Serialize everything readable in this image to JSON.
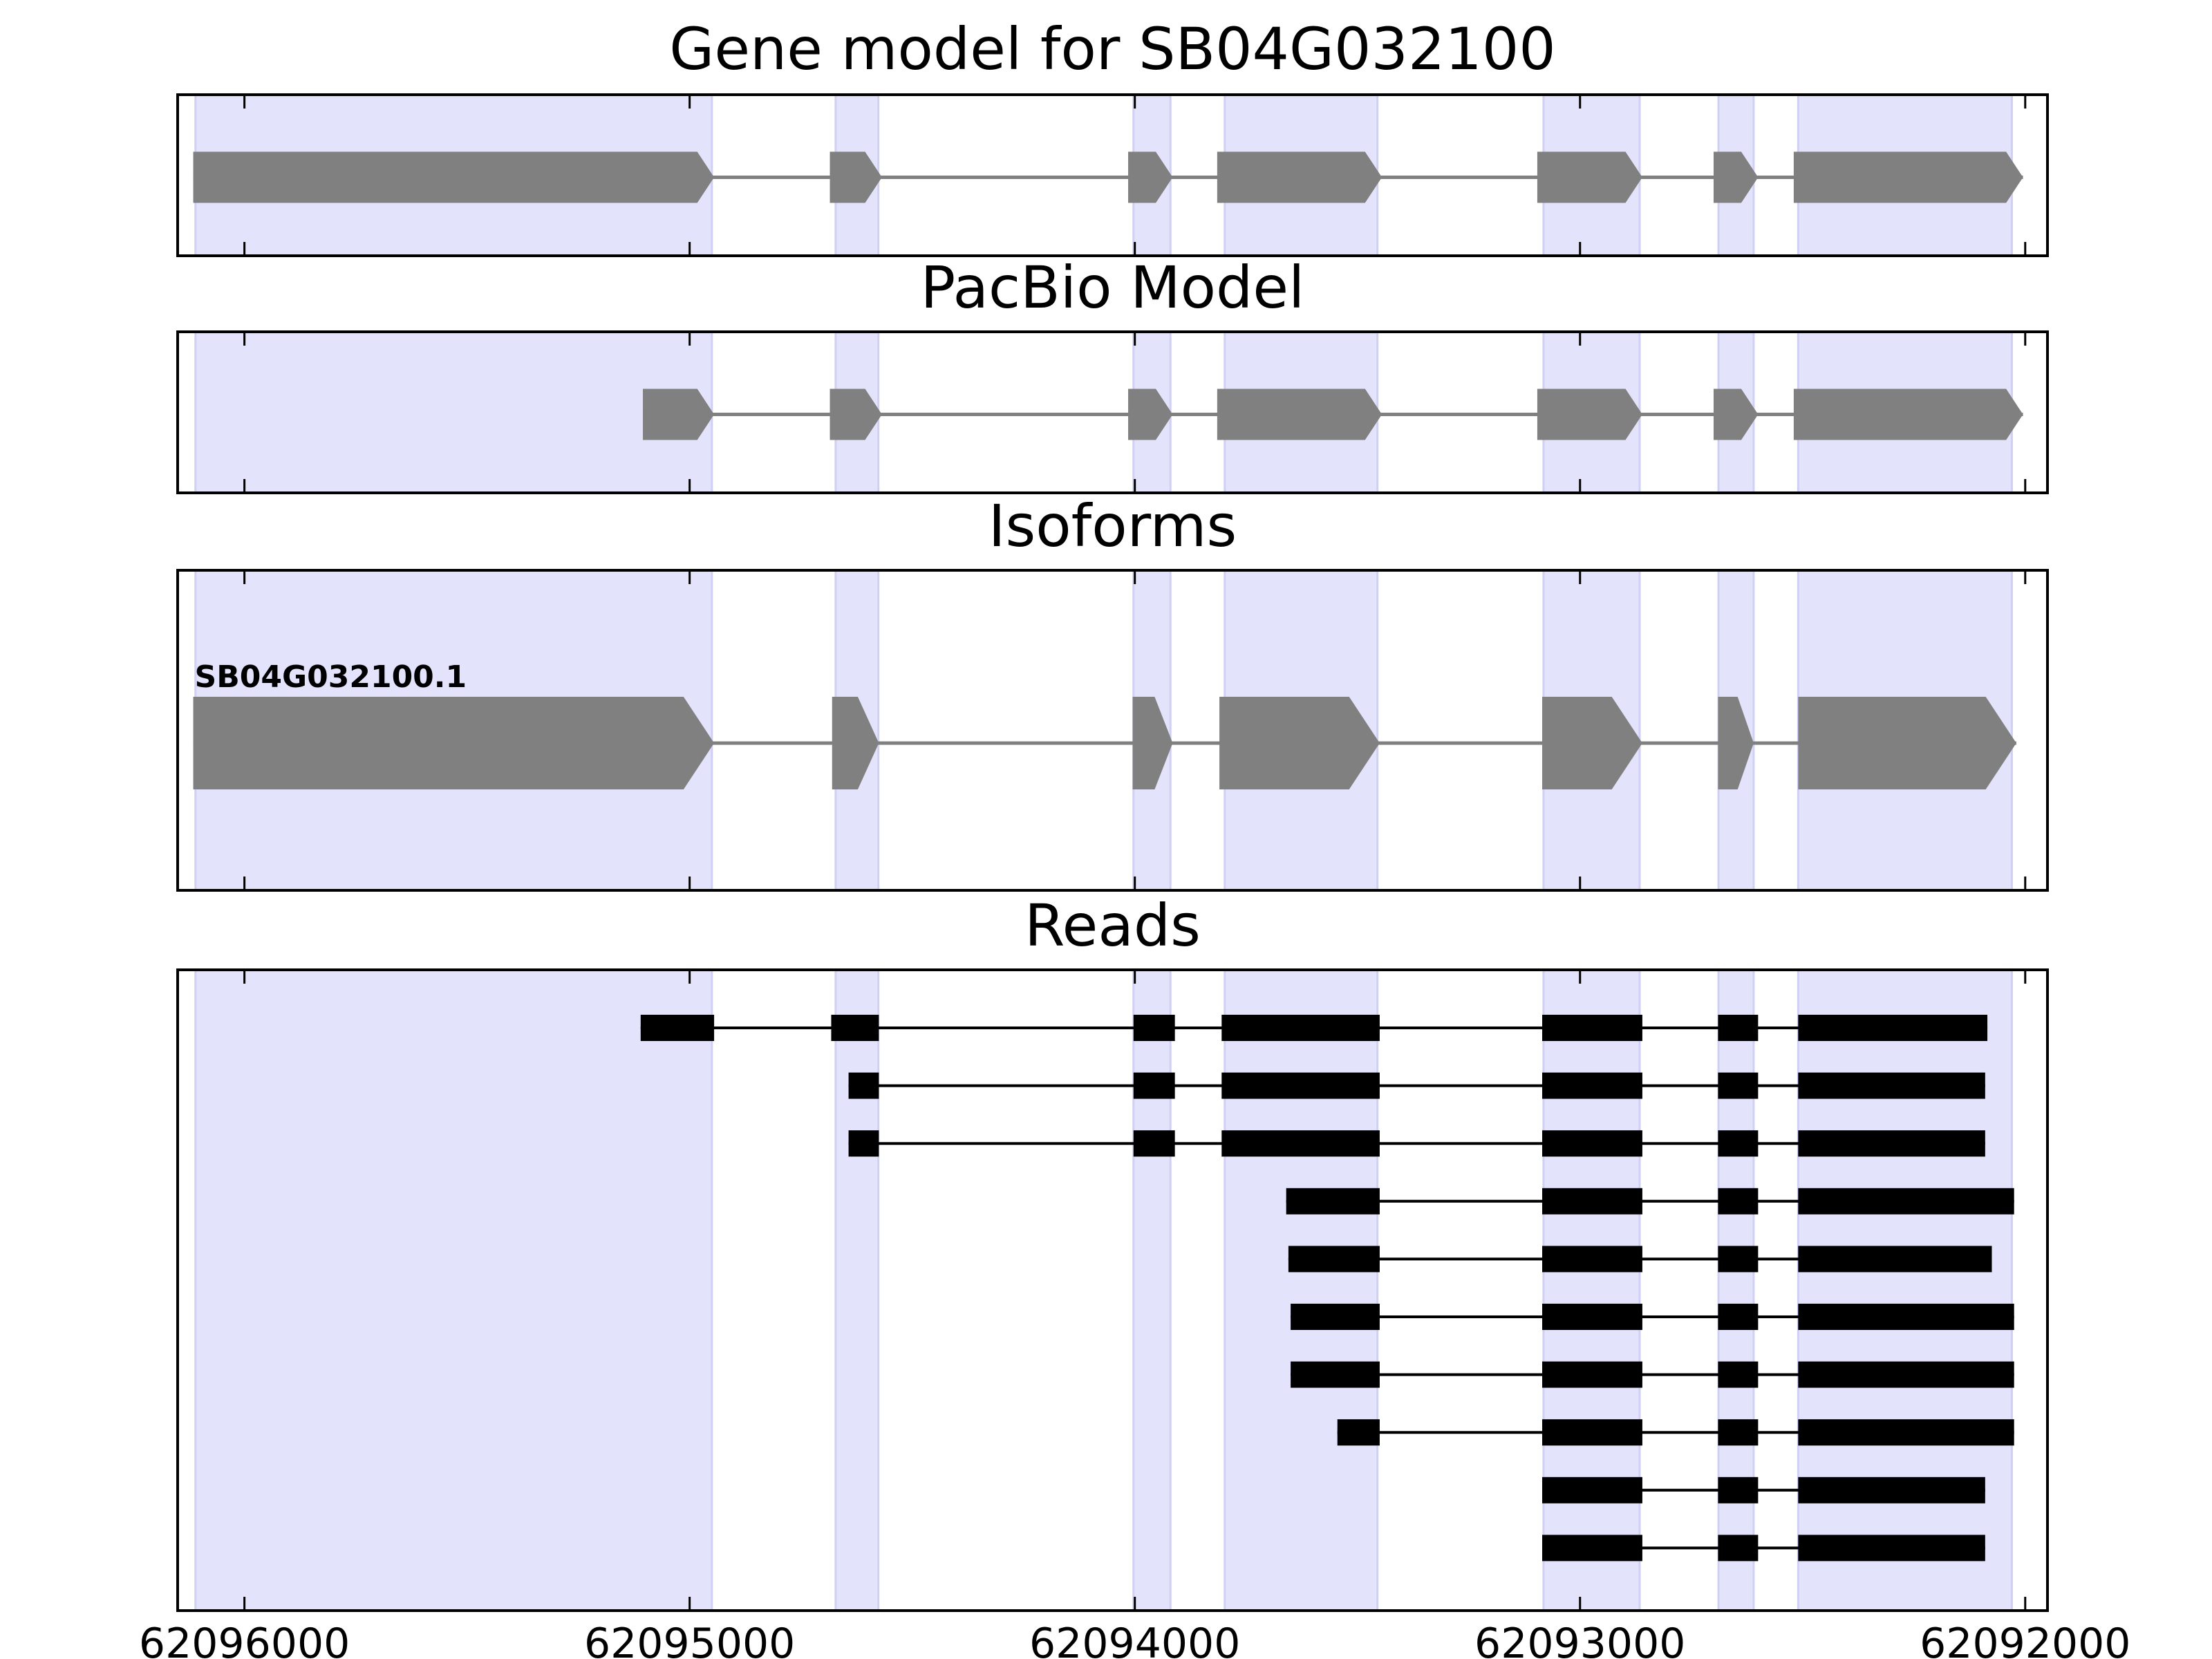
{
  "chart_data": {
    "type": "gene-track",
    "xaxis": {
      "range": [
        62096150,
        62091950
      ],
      "reversed": true,
      "ticks": [
        62096000,
        62095000,
        62094000,
        62093000,
        62092000
      ],
      "tick_labels": [
        "62096000",
        "62095000",
        "62094000",
        "62093000",
        "62092000"
      ]
    },
    "colors": {
      "exon_band": "#e3e3fc",
      "exon_band_edge": "#d0d0f4",
      "gene_shape": "#808080",
      "read": "#000000",
      "frame": "#000000"
    },
    "exon_regions": [
      [
        62096110,
        62094950
      ],
      [
        62094672,
        62094576
      ],
      [
        62094003,
        62093920
      ],
      [
        62093798,
        62093455
      ],
      [
        62093082,
        62092866
      ],
      [
        62092689,
        62092610
      ],
      [
        62092510,
        62092030
      ]
    ],
    "panels": [
      {
        "title": "Gene model for SB04G032100",
        "kind": "model",
        "tracks": [
          {
            "label": "",
            "exons": [
              [
                62096115,
                62094945
              ],
              [
                62094685,
                62094568
              ],
              [
                62094015,
                62093915
              ],
              [
                62093815,
                62093445
              ],
              [
                62093096,
                62092860
              ],
              [
                62092700,
                62092600
              ],
              [
                62092520,
                62092005
              ]
            ]
          }
        ]
      },
      {
        "title": "PacBio Model",
        "kind": "model",
        "tracks": [
          {
            "label": "",
            "exons": [
              [
                62095105,
                62094945
              ],
              [
                62094685,
                62094568
              ],
              [
                62094015,
                62093915
              ],
              [
                62093815,
                62093445
              ],
              [
                62093096,
                62092860
              ],
              [
                62092700,
                62092600
              ],
              [
                62092520,
                62092005
              ]
            ]
          }
        ]
      },
      {
        "title": "Isoforms",
        "kind": "isoform",
        "tracks": [
          {
            "label": "SB04G032100.1",
            "exons": [
              [
                62096115,
                62094945
              ],
              [
                62094680,
                62094575
              ],
              [
                62094005,
                62093915
              ],
              [
                62093810,
                62093450
              ],
              [
                62093085,
                62092860
              ],
              [
                62092690,
                62092610
              ],
              [
                62092510,
                62092020
              ]
            ]
          }
        ]
      },
      {
        "title": "Reads",
        "kind": "reads",
        "tracks": [
          {
            "label": "",
            "exons": [
              [
                62095110,
                62094945
              ],
              [
                62094682,
                62094575
              ],
              [
                62094003,
                62093910
              ],
              [
                62093805,
                62093450
              ],
              [
                62093085,
                62092860
              ],
              [
                62092690,
                62092600
              ],
              [
                62092510,
                62092085
              ]
            ]
          },
          {
            "label": "",
            "exons": [
              [
                62094643,
                62094575
              ],
              [
                62094003,
                62093910
              ],
              [
                62093805,
                62093450
              ],
              [
                62093085,
                62092860
              ],
              [
                62092690,
                62092600
              ],
              [
                62092510,
                62092090
              ]
            ]
          },
          {
            "label": "",
            "exons": [
              [
                62094643,
                62094575
              ],
              [
                62094003,
                62093910
              ],
              [
                62093805,
                62093450
              ],
              [
                62093085,
                62092860
              ],
              [
                62092690,
                62092600
              ],
              [
                62092510,
                62092090
              ]
            ]
          },
          {
            "label": "",
            "exons": [
              [
                62093660,
                62093450
              ],
              [
                62093085,
                62092860
              ],
              [
                62092690,
                62092600
              ],
              [
                62092510,
                62092025
              ]
            ]
          },
          {
            "label": "",
            "exons": [
              [
                62093655,
                62093450
              ],
              [
                62093085,
                62092860
              ],
              [
                62092690,
                62092600
              ],
              [
                62092510,
                62092075
              ]
            ]
          },
          {
            "label": "",
            "exons": [
              [
                62093650,
                62093450
              ],
              [
                62093085,
                62092860
              ],
              [
                62092690,
                62092600
              ],
              [
                62092510,
                62092025
              ]
            ]
          },
          {
            "label": "",
            "exons": [
              [
                62093650,
                62093450
              ],
              [
                62093085,
                62092860
              ],
              [
                62092690,
                62092600
              ],
              [
                62092510,
                62092025
              ]
            ]
          },
          {
            "label": "",
            "exons": [
              [
                62093545,
                62093450
              ],
              [
                62093085,
                62092860
              ],
              [
                62092690,
                62092600
              ],
              [
                62092510,
                62092025
              ]
            ]
          },
          {
            "label": "",
            "exons": [
              [
                62093085,
                62092860
              ],
              [
                62092690,
                62092600
              ],
              [
                62092510,
                62092090
              ]
            ]
          },
          {
            "label": "",
            "exons": [
              [
                62093085,
                62092860
              ],
              [
                62092690,
                62092600
              ],
              [
                62092510,
                62092090
              ]
            ]
          }
        ]
      }
    ]
  }
}
